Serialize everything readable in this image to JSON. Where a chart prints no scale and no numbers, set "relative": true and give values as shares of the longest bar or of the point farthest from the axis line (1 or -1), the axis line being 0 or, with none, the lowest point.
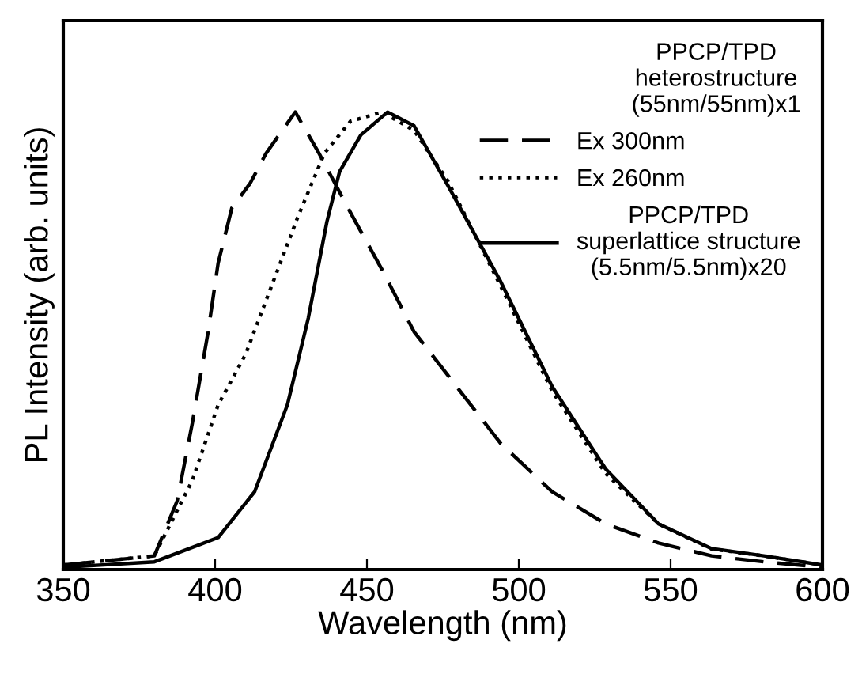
{
  "chart_data": {
    "type": "line",
    "xlabel": "Wavelength (nm)",
    "ylabel": "PL Intensity (arb. units)",
    "relative": true,
    "xlim": [
      350,
      600
    ],
    "xticks": [
      350,
      400,
      450,
      500,
      550,
      600
    ],
    "grid": false,
    "legend": "top right",
    "legend_title": "PPCP/TPD\nheterostructure\n(55nm/55nm)x1",
    "series": [
      {
        "name": "Ex 300nm",
        "color": "#000000",
        "line_style": "dashed",
        "x": [
          350,
          380,
          387.5,
          392.5,
          397.7,
          401,
          405.5,
          411.6,
          416.8,
          426.4,
          434.2,
          444.6,
          455,
          465.5,
          476.6,
          494,
          511,
          528.6,
          546,
          563.5,
          580.7,
          600
        ],
        "values": [
          0.01,
          0.03,
          0.15,
          0.32,
          0.52,
          0.67,
          0.79,
          0.845,
          0.91,
          1.0,
          0.91,
          0.78,
          0.655,
          0.52,
          0.425,
          0.276,
          0.17,
          0.1,
          0.058,
          0.03,
          0.017,
          0.005
        ]
      },
      {
        "name": "Ex 260nm",
        "color": "#000000",
        "line_style": "dotted",
        "x": [
          350,
          380,
          392.5,
          401,
          410,
          418.6,
          427.2,
          436,
          444.6,
          455,
          465.5,
          476.6,
          494,
          511,
          528.6,
          546,
          563.5,
          580.7,
          600
        ],
        "values": [
          0.01,
          0.03,
          0.195,
          0.36,
          0.47,
          0.62,
          0.77,
          0.91,
          0.98,
          1.0,
          0.96,
          0.85,
          0.62,
          0.39,
          0.21,
          0.1,
          0.045,
          0.03,
          0.01
        ]
      },
      {
        "name": "PPCP/TPD\nsuperlattice structure\n(5.5nm/5.5nm)x20",
        "color": "#000000",
        "line_style": "solid",
        "x": [
          350,
          380,
          401,
          413,
          423.8,
          430.7,
          436.8,
          441,
          448,
          456.8,
          465.5,
          476.6,
          494,
          511,
          528.6,
          546,
          563.5,
          580.7,
          600
        ],
        "values": [
          0.005,
          0.017,
          0.07,
          0.17,
          0.36,
          0.55,
          0.76,
          0.87,
          0.95,
          1.0,
          0.97,
          0.84,
          0.63,
          0.4,
          0.22,
          0.1,
          0.046,
          0.03,
          0.01
        ]
      }
    ]
  }
}
